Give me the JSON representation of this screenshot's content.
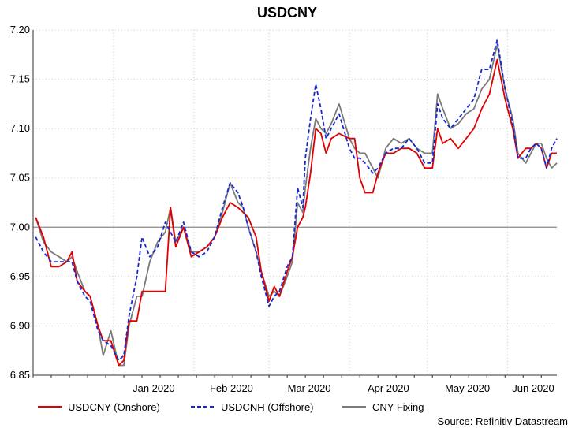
{
  "chart_data": {
    "type": "line",
    "title": "USDCNY",
    "source": "Source: Refinitiv Datastream",
    "xlabel": "",
    "ylabel": "",
    "ylim": [
      6.85,
      7.2
    ],
    "xlim": [
      "2019-12-01",
      "2020-06-20"
    ],
    "yticks": [
      "6.85",
      "6.90",
      "6.95",
      "7.00",
      "7.05",
      "7.10",
      "7.15",
      "7.20"
    ],
    "reference_line": 7.0,
    "xticks": [
      {
        "label": "Jan 2020",
        "date": "2020-01-01"
      },
      {
        "label": "Feb 2020",
        "date": "2020-02-01"
      },
      {
        "label": "Mar 2020",
        "date": "2020-03-01"
      },
      {
        "label": "Apr 2020",
        "date": "2020-04-01"
      },
      {
        "label": "May 2020",
        "date": "2020-05-01"
      },
      {
        "label": "Jun 2020",
        "date": "2020-06-01"
      }
    ],
    "grid": true,
    "legend_position": "bottom",
    "series": [
      {
        "name": "USDCNY (Onshore)",
        "color": "#e00000",
        "style": "solid",
        "points": [
          [
            "2019-12-02",
            7.01
          ],
          [
            "2019-12-05",
            6.99
          ],
          [
            "2019-12-08",
            6.96
          ],
          [
            "2019-12-11",
            6.96
          ],
          [
            "2019-12-14",
            6.965
          ],
          [
            "2019-12-16",
            6.975
          ],
          [
            "2019-12-18",
            6.945
          ],
          [
            "2019-12-21",
            6.935
          ],
          [
            "2019-12-23",
            6.93
          ],
          [
            "2019-12-26",
            6.9
          ],
          [
            "2019-12-28",
            6.885
          ],
          [
            "2019-12-31",
            6.885
          ],
          [
            "2020-01-03",
            6.86
          ],
          [
            "2020-01-05",
            6.865
          ],
          [
            "2020-01-07",
            6.905
          ],
          [
            "2020-01-10",
            6.905
          ],
          [
            "2020-01-12",
            6.935
          ],
          [
            "2020-01-17",
            6.935
          ],
          [
            "2020-01-21",
            6.935
          ],
          [
            "2020-01-23",
            7.02
          ],
          [
            "2020-01-25",
            6.98
          ],
          [
            "2020-01-28",
            7.0
          ],
          [
            "2020-01-31",
            6.97
          ],
          [
            "2020-02-03",
            6.975
          ],
          [
            "2020-02-06",
            6.98
          ],
          [
            "2020-02-09",
            6.99
          ],
          [
            "2020-02-12",
            7.01
          ],
          [
            "2020-02-15",
            7.025
          ],
          [
            "2020-02-18",
            7.02
          ],
          [
            "2020-02-20",
            7.015
          ],
          [
            "2020-02-22",
            7.01
          ],
          [
            "2020-02-25",
            6.99
          ],
          [
            "2020-02-27",
            6.955
          ],
          [
            "2020-03-01",
            6.925
          ],
          [
            "2020-03-03",
            6.94
          ],
          [
            "2020-03-05",
            6.93
          ],
          [
            "2020-03-08",
            6.955
          ],
          [
            "2020-03-10",
            6.97
          ],
          [
            "2020-03-12",
            7.0
          ],
          [
            "2020-03-14",
            7.01
          ],
          [
            "2020-03-15",
            7.02
          ],
          [
            "2020-03-17",
            7.055
          ],
          [
            "2020-03-19",
            7.1
          ],
          [
            "2020-03-21",
            7.095
          ],
          [
            "2020-03-23",
            7.075
          ],
          [
            "2020-03-25",
            7.09
          ],
          [
            "2020-03-28",
            7.095
          ],
          [
            "2020-04-01",
            7.09
          ],
          [
            "2020-04-03",
            7.09
          ],
          [
            "2020-04-05",
            7.05
          ],
          [
            "2020-04-07",
            7.035
          ],
          [
            "2020-04-10",
            7.035
          ],
          [
            "2020-04-12",
            7.055
          ],
          [
            "2020-04-15",
            7.075
          ],
          [
            "2020-04-18",
            7.075
          ],
          [
            "2020-04-21",
            7.08
          ],
          [
            "2020-04-24",
            7.08
          ],
          [
            "2020-04-27",
            7.075
          ],
          [
            "2020-04-30",
            7.06
          ],
          [
            "2020-05-03",
            7.06
          ],
          [
            "2020-05-05",
            7.1
          ],
          [
            "2020-05-07",
            7.085
          ],
          [
            "2020-05-10",
            7.09
          ],
          [
            "2020-05-13",
            7.08
          ],
          [
            "2020-05-16",
            7.09
          ],
          [
            "2020-05-19",
            7.1
          ],
          [
            "2020-05-22",
            7.12
          ],
          [
            "2020-05-25",
            7.135
          ],
          [
            "2020-05-28",
            7.17
          ],
          [
            "2020-05-31",
            7.13
          ],
          [
            "2020-06-03",
            7.1
          ],
          [
            "2020-06-05",
            7.07
          ],
          [
            "2020-06-08",
            7.08
          ],
          [
            "2020-06-10",
            7.08
          ],
          [
            "2020-06-12",
            7.085
          ],
          [
            "2020-06-14",
            7.08
          ],
          [
            "2020-06-16",
            7.06
          ],
          [
            "2020-06-18",
            7.075
          ],
          [
            "2020-06-20",
            7.075
          ]
        ]
      },
      {
        "name": "USDCNH (Offshore)",
        "color": "#1428d0",
        "style": "dashed",
        "points": [
          [
            "2019-12-02",
            6.99
          ],
          [
            "2019-12-05",
            6.975
          ],
          [
            "2019-12-08",
            6.965
          ],
          [
            "2019-12-11",
            6.965
          ],
          [
            "2019-12-14",
            6.965
          ],
          [
            "2019-12-16",
            6.965
          ],
          [
            "2019-12-18",
            6.945
          ],
          [
            "2019-12-21",
            6.93
          ],
          [
            "2019-12-23",
            6.925
          ],
          [
            "2019-12-26",
            6.895
          ],
          [
            "2019-12-28",
            6.885
          ],
          [
            "2019-12-31",
            6.88
          ],
          [
            "2020-01-03",
            6.865
          ],
          [
            "2020-01-05",
            6.87
          ],
          [
            "2020-01-07",
            6.91
          ],
          [
            "2020-01-10",
            6.95
          ],
          [
            "2020-01-12",
            6.99
          ],
          [
            "2020-01-15",
            6.97
          ],
          [
            "2020-01-18",
            6.98
          ],
          [
            "2020-01-21",
            7.005
          ],
          [
            "2020-01-23",
            6.995
          ],
          [
            "2020-01-25",
            6.985
          ],
          [
            "2020-01-28",
            7.005
          ],
          [
            "2020-01-31",
            6.975
          ],
          [
            "2020-02-03",
            6.97
          ],
          [
            "2020-02-06",
            6.975
          ],
          [
            "2020-02-09",
            6.99
          ],
          [
            "2020-02-12",
            7.02
          ],
          [
            "2020-02-15",
            7.045
          ],
          [
            "2020-02-18",
            7.035
          ],
          [
            "2020-02-20",
            7.02
          ],
          [
            "2020-02-22",
            7.0
          ],
          [
            "2020-02-25",
            6.975
          ],
          [
            "2020-02-27",
            6.95
          ],
          [
            "2020-03-01",
            6.92
          ],
          [
            "2020-03-03",
            6.93
          ],
          [
            "2020-03-05",
            6.935
          ],
          [
            "2020-03-08",
            6.96
          ],
          [
            "2020-03-10",
            6.97
          ],
          [
            "2020-03-12",
            7.04
          ],
          [
            "2020-03-14",
            7.02
          ],
          [
            "2020-03-15",
            7.07
          ],
          [
            "2020-03-17",
            7.11
          ],
          [
            "2020-03-19",
            7.145
          ],
          [
            "2020-03-21",
            7.12
          ],
          [
            "2020-03-23",
            7.09
          ],
          [
            "2020-03-25",
            7.1
          ],
          [
            "2020-03-28",
            7.115
          ],
          [
            "2020-04-01",
            7.08
          ],
          [
            "2020-04-03",
            7.07
          ],
          [
            "2020-04-05",
            7.07
          ],
          [
            "2020-04-07",
            7.065
          ],
          [
            "2020-04-10",
            7.055
          ],
          [
            "2020-04-12",
            7.06
          ],
          [
            "2020-04-15",
            7.075
          ],
          [
            "2020-04-18",
            7.08
          ],
          [
            "2020-04-21",
            7.08
          ],
          [
            "2020-04-24",
            7.09
          ],
          [
            "2020-04-27",
            7.08
          ],
          [
            "2020-04-30",
            7.065
          ],
          [
            "2020-05-03",
            7.065
          ],
          [
            "2020-05-05",
            7.125
          ],
          [
            "2020-05-07",
            7.11
          ],
          [
            "2020-05-10",
            7.1
          ],
          [
            "2020-05-13",
            7.11
          ],
          [
            "2020-05-16",
            7.12
          ],
          [
            "2020-05-19",
            7.13
          ],
          [
            "2020-05-22",
            7.16
          ],
          [
            "2020-05-25",
            7.16
          ],
          [
            "2020-05-28",
            7.19
          ],
          [
            "2020-05-31",
            7.14
          ],
          [
            "2020-06-03",
            7.105
          ],
          [
            "2020-06-05",
            7.07
          ],
          [
            "2020-06-08",
            7.07
          ],
          [
            "2020-06-10",
            7.08
          ],
          [
            "2020-06-12",
            7.085
          ],
          [
            "2020-06-14",
            7.08
          ],
          [
            "2020-06-16",
            7.06
          ],
          [
            "2020-06-18",
            7.08
          ],
          [
            "2020-06-20",
            7.09
          ]
        ]
      },
      {
        "name": "CNY Fixing",
        "color": "#7a7a7a",
        "style": "solid",
        "points": [
          [
            "2019-12-02",
            7.01
          ],
          [
            "2019-12-05",
            6.985
          ],
          [
            "2019-12-08",
            6.975
          ],
          [
            "2019-12-11",
            6.97
          ],
          [
            "2019-12-14",
            6.965
          ],
          [
            "2019-12-16",
            6.97
          ],
          [
            "2019-12-18",
            6.955
          ],
          [
            "2019-12-21",
            6.935
          ],
          [
            "2019-12-23",
            6.93
          ],
          [
            "2019-12-26",
            6.9
          ],
          [
            "2019-12-28",
            6.87
          ],
          [
            "2019-12-31",
            6.895
          ],
          [
            "2020-01-03",
            6.86
          ],
          [
            "2020-01-05",
            6.86
          ],
          [
            "2020-01-07",
            6.9
          ],
          [
            "2020-01-10",
            6.93
          ],
          [
            "2020-01-12",
            6.93
          ],
          [
            "2020-01-15",
            6.965
          ],
          [
            "2020-01-18",
            6.985
          ],
          [
            "2020-01-21",
            6.995
          ],
          [
            "2020-01-23",
            7.02
          ],
          [
            "2020-01-25",
            6.985
          ],
          [
            "2020-01-28",
            7.0
          ],
          [
            "2020-01-31",
            6.975
          ],
          [
            "2020-02-03",
            6.975
          ],
          [
            "2020-02-06",
            6.98
          ],
          [
            "2020-02-09",
            6.99
          ],
          [
            "2020-02-12",
            7.015
          ],
          [
            "2020-02-15",
            7.045
          ],
          [
            "2020-02-18",
            7.025
          ],
          [
            "2020-02-20",
            7.02
          ],
          [
            "2020-02-22",
            7.0
          ],
          [
            "2020-02-25",
            6.975
          ],
          [
            "2020-02-27",
            6.955
          ],
          [
            "2020-03-01",
            6.93
          ],
          [
            "2020-03-03",
            6.935
          ],
          [
            "2020-03-05",
            6.93
          ],
          [
            "2020-03-08",
            6.95
          ],
          [
            "2020-03-10",
            6.965
          ],
          [
            "2020-03-12",
            7.025
          ],
          [
            "2020-03-14",
            7.015
          ],
          [
            "2020-03-15",
            7.04
          ],
          [
            "2020-03-17",
            7.08
          ],
          [
            "2020-03-19",
            7.11
          ],
          [
            "2020-03-21",
            7.1
          ],
          [
            "2020-03-23",
            7.095
          ],
          [
            "2020-03-25",
            7.105
          ],
          [
            "2020-03-28",
            7.125
          ],
          [
            "2020-04-01",
            7.09
          ],
          [
            "2020-04-03",
            7.08
          ],
          [
            "2020-04-05",
            7.075
          ],
          [
            "2020-04-07",
            7.075
          ],
          [
            "2020-04-10",
            7.06
          ],
          [
            "2020-04-12",
            7.05
          ],
          [
            "2020-04-15",
            7.08
          ],
          [
            "2020-04-18",
            7.09
          ],
          [
            "2020-04-21",
            7.085
          ],
          [
            "2020-04-24",
            7.09
          ],
          [
            "2020-04-27",
            7.08
          ],
          [
            "2020-04-30",
            7.075
          ],
          [
            "2020-05-03",
            7.075
          ],
          [
            "2020-05-05",
            7.135
          ],
          [
            "2020-05-07",
            7.12
          ],
          [
            "2020-05-10",
            7.1
          ],
          [
            "2020-05-13",
            7.105
          ],
          [
            "2020-05-16",
            7.115
          ],
          [
            "2020-05-19",
            7.12
          ],
          [
            "2020-05-22",
            7.14
          ],
          [
            "2020-05-25",
            7.15
          ],
          [
            "2020-05-28",
            7.185
          ],
          [
            "2020-05-31",
            7.14
          ],
          [
            "2020-06-03",
            7.11
          ],
          [
            "2020-06-05",
            7.075
          ],
          [
            "2020-06-08",
            7.065
          ],
          [
            "2020-06-10",
            7.075
          ],
          [
            "2020-06-12",
            7.085
          ],
          [
            "2020-06-14",
            7.085
          ],
          [
            "2020-06-16",
            7.07
          ],
          [
            "2020-06-18",
            7.06
          ],
          [
            "2020-06-20",
            7.065
          ]
        ]
      }
    ]
  }
}
